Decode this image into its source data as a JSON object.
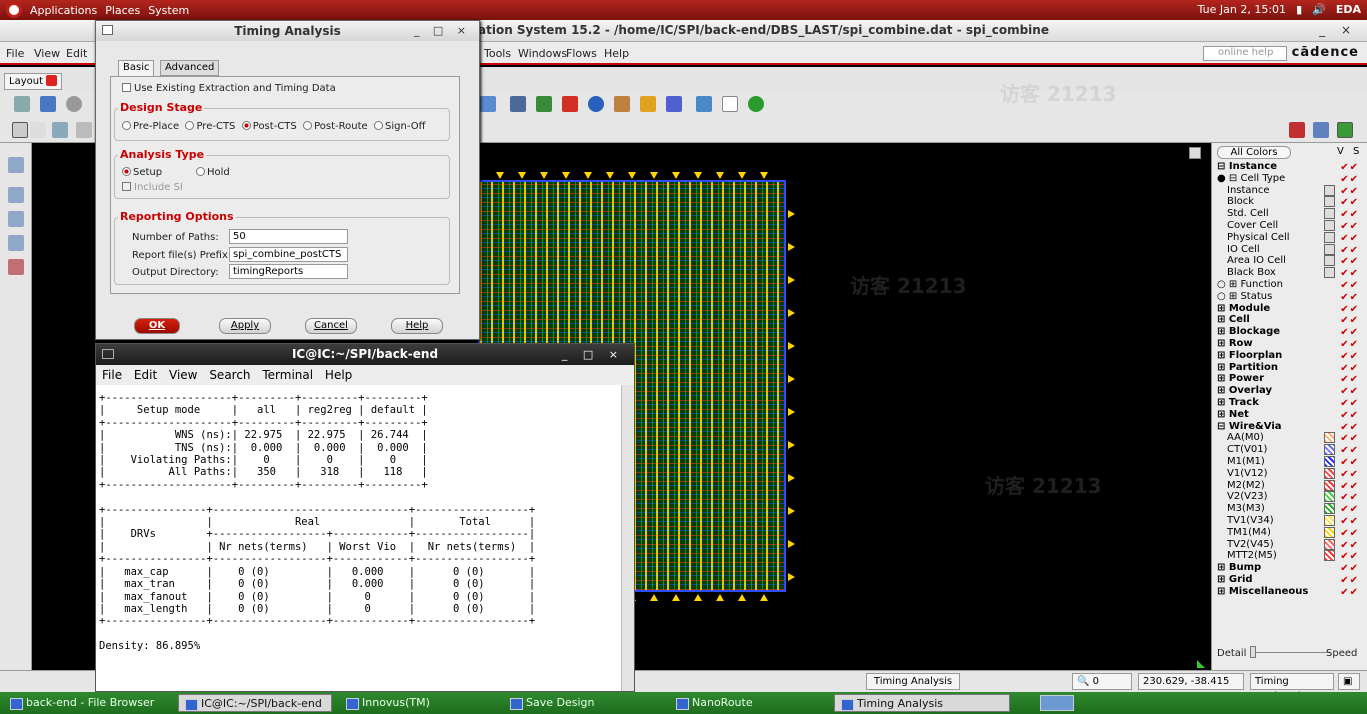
{
  "top_panel": {
    "menus": [
      "Applications",
      "Places",
      "System"
    ],
    "clock": "Tue Jan  2, 15:01",
    "user": "EDA"
  },
  "innovus": {
    "title": "ation System 15.2 - /home/IC/SPI/back-end/DBS_LAST/spi_combine.dat - spi_combine",
    "menus": [
      "File",
      "View",
      "Edit"
    ],
    "menus_right": [
      "Tools",
      "Windows",
      "Flows",
      "Help"
    ],
    "help_placeholder": "online help",
    "brand": "cādence",
    "layout_tab": "Layout"
  },
  "layer_panel": {
    "all_colors": "All Colors",
    "vs": "V S",
    "rows": [
      {
        "label": "Instance",
        "bold": true,
        "prefix": "⊟"
      },
      {
        "label": "Cell Type",
        "prefix": "● ⊟"
      },
      {
        "label": "Instance",
        "indent": true
      },
      {
        "label": "Block",
        "indent": true
      },
      {
        "label": "Std. Cell",
        "indent": true
      },
      {
        "label": "Cover Cell",
        "indent": true
      },
      {
        "label": "Physical Cell",
        "indent": true
      },
      {
        "label": "IO Cell",
        "indent": true
      },
      {
        "label": "Area IO Cell",
        "indent": true
      },
      {
        "label": "Black Box",
        "indent": true
      },
      {
        "label": "Function",
        "prefix": "○ ⊞"
      },
      {
        "label": "Status",
        "prefix": "○ ⊞"
      },
      {
        "label": "Module",
        "bold": true,
        "prefix": "⊞"
      },
      {
        "label": "Cell",
        "bold": true,
        "prefix": "⊞"
      },
      {
        "label": "Blockage",
        "bold": true,
        "prefix": "⊞"
      },
      {
        "label": "Row",
        "bold": true,
        "prefix": "⊞"
      },
      {
        "label": "Floorplan",
        "bold": true,
        "prefix": "⊞"
      },
      {
        "label": "Partition",
        "bold": true,
        "prefix": "⊞"
      },
      {
        "label": "Power",
        "bold": true,
        "prefix": "⊞"
      },
      {
        "label": "Overlay",
        "bold": true,
        "prefix": "⊞"
      },
      {
        "label": "Track",
        "bold": true,
        "prefix": "⊞"
      },
      {
        "label": "Net",
        "bold": true,
        "prefix": "⊞"
      },
      {
        "label": "Wire&Via",
        "bold": true,
        "prefix": "⊟"
      },
      {
        "label": "AA(M0)",
        "indent": true,
        "color": "#ffb070"
      },
      {
        "label": "CT(V01)",
        "indent": true,
        "color": "#6f6fff"
      },
      {
        "label": "M1(M1)",
        "indent": true,
        "color": "#2a2aff"
      },
      {
        "label": "V1(V12)",
        "indent": true,
        "color": "#ff4040"
      },
      {
        "label": "M2(M2)",
        "indent": true,
        "color": "#ff3030"
      },
      {
        "label": "V2(V23)",
        "indent": true,
        "color": "#40d040"
      },
      {
        "label": "M3(M3)",
        "indent": true,
        "color": "#20b020"
      },
      {
        "label": "TV1(V34)",
        "indent": true,
        "color": "#ffe040"
      },
      {
        "label": "TM1(M4)",
        "indent": true,
        "color": "#ffd000"
      },
      {
        "label": "TV2(V45)",
        "indent": true,
        "color": "#ff6060"
      },
      {
        "label": "MTT2(M5)",
        "indent": true,
        "color": "#ff3030"
      },
      {
        "label": "Bump",
        "bold": true,
        "prefix": "⊞"
      },
      {
        "label": "Grid",
        "bold": true,
        "prefix": "⊞"
      },
      {
        "label": "Miscellaneous",
        "bold": true,
        "prefix": "⊞"
      }
    ],
    "detail": "Detail",
    "speed": "Speed"
  },
  "status_bar": {
    "timing_analysis": "Timing Analysis",
    "q_value": "0",
    "coords": "230.629, -38.415",
    "timing_state": "Timing Analyzed"
  },
  "taskbar": [
    "back-end - File Browser",
    "IC@IC:~/SPI/back-end",
    "Innovus(TM) Impleme...",
    "Save Design",
    "NanoRoute",
    "Timing Analysis"
  ],
  "timing_dialog": {
    "title": "Timing Analysis",
    "tabs": [
      "Basic",
      "Advanced"
    ],
    "use_existing": "Use Existing Extraction and Timing Data",
    "design_stage_title": "Design Stage",
    "stages": [
      "Pre-Place",
      "Pre-CTS",
      "Post-CTS",
      "Post-Route",
      "Sign-Off"
    ],
    "stage_selected": "Post-CTS",
    "analysis_type_title": "Analysis Type",
    "setup": "Setup",
    "hold": "Hold",
    "include_si": "Include SI",
    "reporting_title": "Reporting Options",
    "num_paths_label": "Number of Paths:",
    "num_paths": "50",
    "prefix_label": "Report file(s) Prefix:",
    "prefix": "spi_combine_postCTS",
    "outdir_label": "Output Directory:",
    "outdir": "timingReports",
    "ok": "OK",
    "apply": "Apply",
    "cancel": "Cancel",
    "help": "Help"
  },
  "terminal": {
    "title": "IC@IC:~/SPI/back-end",
    "menus": [
      "File",
      "Edit",
      "View",
      "Search",
      "Terminal",
      "Help"
    ],
    "lines": [
      "+--------------------+---------+---------+---------+",
      "|     Setup mode     |   all   | reg2reg | default |",
      "+--------------------+---------+---------+---------+",
      "|           WNS (ns):| 22.975  | 22.975  | 26.744  |",
      "|           TNS (ns):|  0.000  |  0.000  |  0.000  |",
      "|    Violating Paths:|    0    |    0    |    0    |",
      "|          All Paths:|   350   |   318   |   118   |",
      "+--------------------+---------+---------+---------+",
      "",
      "+----------------+-------------------------------+------------------+",
      "|                |             Real              |       Total      |",
      "|    DRVs        +------------------+------------+------------------|",
      "|                | Nr nets(terms)   | Worst Vio  |  Nr nets(terms)  |",
      "+----------------+------------------+------------+------------------+",
      "|   max_cap      |    0 (0)         |   0.000    |      0 (0)       |",
      "|   max_tran     |    0 (0)         |   0.000    |      0 (0)       |",
      "|   max_fanout   |    0 (0)         |     0      |      0 (0)       |",
      "|   max_length   |    0 (0)         |     0      |      0 (0)       |",
      "+----------------+------------------+------------+------------------+",
      "",
      "Density: 86.895%"
    ]
  },
  "watermark": "访客 21213"
}
